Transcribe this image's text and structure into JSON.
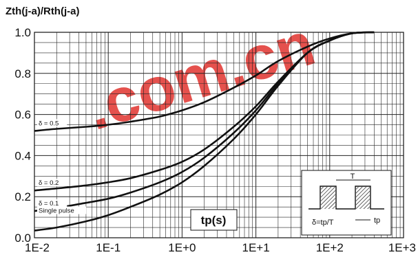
{
  "chart_data": {
    "type": "line",
    "title": "Zth(j-a)/Rth(j-a)",
    "xlabel": "tp(s)",
    "ylabel": "Zth(j-a)/Rth(j-a)",
    "x_scale": "log",
    "xlim": [
      0.01,
      1000
    ],
    "ylim": [
      0.0,
      1.0
    ],
    "grid": true,
    "x_ticks": [
      "1E-2",
      "1E-1",
      "1E+0",
      "1E+1",
      "1E+2",
      "1E+3"
    ],
    "y_ticks": [
      "0.0",
      "0.2",
      "0.4",
      "0.6",
      "0.8",
      "1.0"
    ],
    "series": [
      {
        "name": "δ = 0.5",
        "color": "#111111",
        "x": [
          0.01,
          0.02,
          0.05,
          0.1,
          0.2,
          0.5,
          1,
          2,
          5,
          10,
          20,
          50,
          100,
          200,
          400
        ],
        "y": [
          0.52,
          0.53,
          0.54,
          0.55,
          0.565,
          0.59,
          0.62,
          0.66,
          0.73,
          0.79,
          0.86,
          0.93,
          0.97,
          0.995,
          1.0
        ]
      },
      {
        "name": "δ = 0.2",
        "color": "#111111",
        "x": [
          0.01,
          0.02,
          0.05,
          0.1,
          0.2,
          0.5,
          1,
          2,
          5,
          10,
          20,
          50,
          100,
          200,
          400
        ],
        "y": [
          0.23,
          0.24,
          0.255,
          0.27,
          0.29,
          0.33,
          0.37,
          0.43,
          0.54,
          0.64,
          0.76,
          0.9,
          0.96,
          0.995,
          1.0
        ]
      },
      {
        "name": "δ = 0.1",
        "color": "#111111",
        "x": [
          0.01,
          0.02,
          0.05,
          0.1,
          0.2,
          0.5,
          1,
          2,
          5,
          10,
          20,
          50,
          100,
          200,
          400
        ],
        "y": [
          0.13,
          0.145,
          0.17,
          0.19,
          0.22,
          0.27,
          0.32,
          0.39,
          0.51,
          0.62,
          0.75,
          0.9,
          0.96,
          0.995,
          1.0
        ]
      },
      {
        "name": "Single pulse",
        "color": "#111111",
        "x": [
          0.01,
          0.02,
          0.05,
          0.1,
          0.2,
          0.5,
          1,
          2,
          5,
          10,
          20,
          50,
          100,
          200,
          400
        ],
        "y": [
          0.035,
          0.05,
          0.08,
          0.11,
          0.15,
          0.21,
          0.27,
          0.35,
          0.48,
          0.6,
          0.74,
          0.9,
          0.96,
          0.995,
          1.0
        ]
      }
    ],
    "inset": {
      "duty_label": "δ=tp/T",
      "period_label": "T",
      "pulse_label": "tp"
    }
  },
  "watermark_text": ".com.cn"
}
